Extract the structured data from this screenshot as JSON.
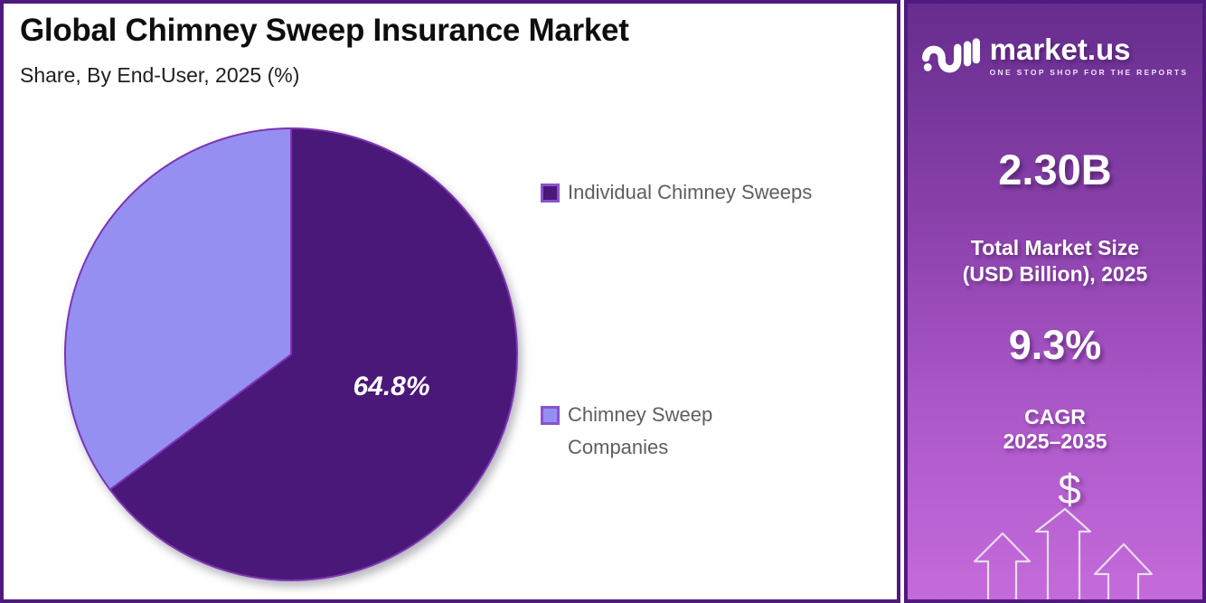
{
  "header": {
    "title": "Global Chimney Sweep Insurance Market",
    "subtitle": "Share, By End-User, 2025 (%)"
  },
  "chart_data": {
    "type": "pie",
    "title": "Global Chimney Sweep Insurance Market Share, By End-User, 2025 (%)",
    "unit": "%",
    "year": "2025",
    "start_angle_deg": 0,
    "direction": "clockwise",
    "legend_position": "right",
    "stroke_color": "#7D35B5",
    "slices": [
      {
        "label": "Individual Chimney Sweeps",
        "value": 64.8,
        "data_label": "64.8%",
        "color": "#4A1878"
      },
      {
        "label": "Chimney Sweep Companies",
        "value": 35.2,
        "data_label": "",
        "color": "#958FF2"
      }
    ]
  },
  "sidebar": {
    "brand": {
      "name": "market.us",
      "tagline": "ONE STOP SHOP FOR THE REPORTS",
      "icon": "marketus-wave-logo"
    },
    "market_size": {
      "value": "2.30B",
      "label_line1": "Total Market Size",
      "label_line2": "(USD Billion), 2025"
    },
    "cagr": {
      "value": "9.3%",
      "label_line1": "CAGR",
      "label_line2": "2025–2035"
    },
    "dollar_symbol": "$",
    "gradient_top": "#662D8E",
    "gradient_bottom": "#C56ADB"
  },
  "colors": {
    "frame_border": "#4F1A7E",
    "legend_text": "#5E5E5E",
    "background": "#FFFFFF"
  }
}
